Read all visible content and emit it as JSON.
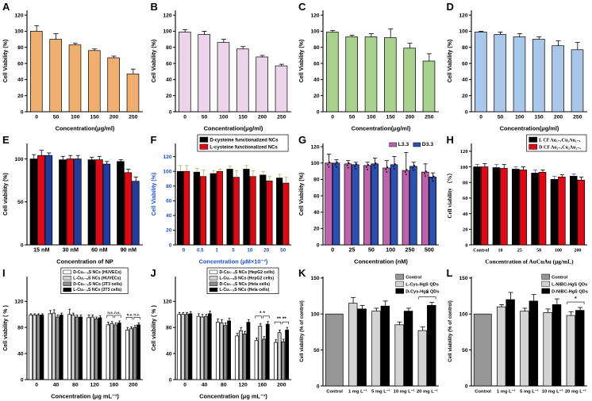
{
  "figure": {
    "background": "#ffffff"
  },
  "chart_data": [
    {
      "panel": "A",
      "type": "bar",
      "categories": [
        "0",
        "50",
        "100",
        "150",
        "200",
        "250"
      ],
      "series": [
        {
          "name": "",
          "color": "#F0AF6F",
          "values": [
            100,
            90,
            83,
            76,
            67,
            47
          ],
          "errors": [
            7,
            7,
            2,
            2,
            2,
            6
          ]
        }
      ],
      "xlabel": "Concentration(μg/ml)",
      "ylabel": "Cell Viability (%)",
      "ylim": [
        0,
        126
      ],
      "yticks": [
        0,
        20,
        40,
        60,
        80,
        100,
        120
      ],
      "grid": false,
      "legend": null
    },
    {
      "panel": "B",
      "type": "bar",
      "categories": [
        "0",
        "50",
        "100",
        "150",
        "200",
        "250"
      ],
      "series": [
        {
          "name": "",
          "color": "#ECD4E9",
          "values": [
            99,
            96,
            86,
            78,
            68,
            57
          ],
          "errors": [
            3,
            4,
            4,
            3,
            2,
            2
          ]
        }
      ],
      "xlabel": "Concentration(μg/ml)",
      "ylabel": "Cell Viability (%)",
      "ylim": [
        0,
        126
      ],
      "yticks": [
        0,
        20,
        40,
        60,
        80,
        100,
        120
      ],
      "grid": false,
      "legend": null
    },
    {
      "panel": "C",
      "type": "bar",
      "categories": [
        "0",
        "50",
        "100",
        "150",
        "200",
        "250"
      ],
      "series": [
        {
          "name": "",
          "color": "#A9D18E",
          "values": [
            99,
            93,
            93,
            92,
            79,
            63
          ],
          "errors": [
            2,
            2,
            4,
            11,
            6,
            9
          ]
        }
      ],
      "xlabel": "Concentration(μg/ml)",
      "ylabel": "Cell Viability (%)",
      "ylim": [
        0,
        126
      ],
      "yticks": [
        0,
        20,
        40,
        60,
        80,
        100,
        120
      ],
      "grid": false,
      "legend": null
    },
    {
      "panel": "D",
      "type": "bar",
      "categories": [
        "0",
        "50",
        "100",
        "150",
        "200",
        "250"
      ],
      "series": [
        {
          "name": "",
          "color": "#A9C7E8",
          "values": [
            99,
            96,
            93,
            90,
            82,
            77
          ],
          "errors": [
            1,
            3,
            4,
            3,
            6,
            9
          ]
        }
      ],
      "xlabel": "Concentration(μg/ml)",
      "ylabel": "Cell Viability (%)",
      "ylim": [
        0,
        126
      ],
      "yticks": [
        0,
        20,
        40,
        60,
        80,
        100,
        120
      ],
      "grid": false,
      "legend": null
    },
    {
      "panel": "E",
      "type": "bar",
      "categories": [
        "15 nM",
        "30 nM",
        "60 nM",
        "90 nM"
      ],
      "series": [
        {
          "name": "",
          "color": "#000000",
          "values": [
            100,
            99,
            99,
            97
          ],
          "errors": [
            5,
            4,
            3,
            2
          ]
        },
        {
          "name": "",
          "color": "#E30613",
          "values": [
            104,
            100,
            99,
            84
          ],
          "errors": [
            6,
            4,
            4,
            4
          ]
        },
        {
          "name": "",
          "color": "#1F3C9E",
          "values": [
            104,
            100,
            94,
            74
          ],
          "errors": [
            3,
            4,
            3,
            5
          ]
        }
      ],
      "xlabel": "Concentration of NP",
      "ylabel": "Cell viability (%)",
      "ylim": [
        0,
        118
      ],
      "yticks": [
        0,
        50,
        100
      ],
      "grid": false,
      "legend": null,
      "xtick_size": 7.2
    },
    {
      "panel": "F",
      "type": "bar",
      "categories": [
        "0",
        "0.5",
        "1",
        "5",
        "10",
        "20",
        "50"
      ],
      "series": [
        {
          "name": "D-cysteine functionalized NCs",
          "color": "#000000",
          "values": [
            100,
            99,
            97,
            103,
            103,
            95,
            91
          ],
          "errors": [
            8,
            5,
            4,
            4,
            5,
            5,
            5
          ],
          "err_color": "#A6B85C"
        },
        {
          "name": "L-cysteine functionalized  NCs",
          "color": "#E30613",
          "values": [
            100,
            93,
            100,
            92,
            93,
            87,
            84
          ],
          "errors": [
            8,
            9,
            3,
            9,
            8,
            6,
            8
          ],
          "err_color": "#A6B85C"
        }
      ],
      "xlabel": "Concentration (μM×10⁻³)",
      "ylabel": "Cell Viability (%)",
      "ylim": [
        0,
        138
      ],
      "yticks": [
        0,
        20,
        40,
        60,
        80,
        100,
        120
      ],
      "axis_color": "#1C4ED8",
      "grid": false,
      "legend": {
        "border": true,
        "pos": "center"
      },
      "xtick_size": 6.2
    },
    {
      "panel": "G",
      "type": "bar",
      "categories": [
        "0",
        "25",
        "50",
        "100",
        "250",
        "500"
      ],
      "series": [
        {
          "name": "L3.3",
          "color": "#BE62AC",
          "values": [
            100,
            99,
            97,
            94,
            91,
            89
          ],
          "errors": [
            11,
            4,
            4,
            9,
            22,
            10
          ],
          "dots": true
        },
        {
          "name": "D3.3",
          "color": "#2B50B4",
          "values": [
            100,
            98,
            99,
            98,
            96,
            83
          ],
          "errors": [
            4,
            3,
            7,
            10,
            5,
            5
          ],
          "dots": true
        }
      ],
      "xlabel": "Concentration (nM)",
      "ylabel": "Cell Viability (%)",
      "ylim": [
        0,
        124
      ],
      "yticks": [
        0,
        20,
        40,
        60,
        80,
        100,
        120
      ],
      "grid": false,
      "legend": {
        "border": false,
        "pos": "right",
        "row": true
      },
      "xtick_size": 7.2
    },
    {
      "panel": "H",
      "type": "bar",
      "font": "serif",
      "categories": [
        "Control",
        "10",
        "25",
        "50",
        "100",
        "200"
      ],
      "series": [
        {
          "name": "L CF Au₁₋ₓCu₂Au₁₋ₓ",
          "color": "#000000",
          "values": [
            100,
            99,
            97,
            92,
            84,
            88
          ],
          "errors": [
            3,
            4,
            3,
            4,
            4,
            3
          ],
          "err_color": "#3A5FC8"
        },
        {
          "name": "D CF Au₁₋ₓCu₂Au₁₋ₓ",
          "color": "#E30613",
          "values": [
            100,
            98,
            96,
            93,
            87,
            83
          ],
          "errors": [
            4,
            5,
            4,
            3,
            3,
            4
          ],
          "err_color": "#000000"
        }
      ],
      "xlabel": "Concentration of AuCuAu (μg/mL)",
      "ylabel": "Cell viability （%）",
      "ylim": [
        0,
        130
      ],
      "yticks": [
        0,
        20,
        40,
        60,
        80,
        100,
        120
      ],
      "grid": false,
      "legend": {
        "border": true,
        "pos": "right"
      },
      "xtick_size": 6.0
    },
    {
      "panel": "I",
      "type": "bar",
      "categories": [
        "0",
        "40",
        "80",
        "120",
        "160",
        "200"
      ],
      "series": [
        {
          "name": "D-Cu₂₋ₓS NCs (HUVECs)",
          "color": "#FFFFFF",
          "values": [
            99,
            101,
            100,
            95,
            84,
            76
          ],
          "errors": [
            2,
            5,
            8,
            4,
            4,
            4
          ]
        },
        {
          "name": "L-Cu₂₋ₓS NCs (HUVECs)",
          "color": "#D3D3D3",
          "values": [
            99,
            102,
            99,
            96,
            86,
            78
          ],
          "errors": [
            2,
            5,
            3,
            3,
            3,
            3
          ]
        },
        {
          "name": "D-Cu₂₋ₓS NCs (3T3 cells)",
          "color": "#8C8C8C",
          "values": [
            99,
            96,
            96,
            93,
            84,
            80
          ],
          "errors": [
            2,
            3,
            3,
            3,
            3,
            3
          ]
        },
        {
          "name": "L-Cu₂₋ₓS NCs (3T3 cells)",
          "color": "#000000",
          "values": [
            99,
            99,
            96,
            95,
            87,
            84
          ],
          "errors": [
            2,
            3,
            3,
            3,
            3,
            3
          ]
        }
      ],
      "xlabel": "Concentration (μg mL⁻¹)",
      "ylabel": "Cell viability ( % )",
      "ylim": [
        0,
        158
      ],
      "yticks": [
        0,
        40,
        80,
        120
      ],
      "grid": false,
      "legend": {
        "border": true,
        "pos": "center"
      },
      "annotations": [
        {
          "group": 4,
          "text": "n.s. n.s.",
          "brackets": 2,
          "size": 4.4
        },
        {
          "group": 5,
          "text": "n.s. n.s.",
          "brackets": 2,
          "size": 4.4
        }
      ]
    },
    {
      "panel": "J",
      "type": "bar",
      "categories": [
        "0",
        "40",
        "80",
        "120",
        "160",
        "200"
      ],
      "series": [
        {
          "name": "D-Cu₂₋ₓS NCs (HepG2 cells)",
          "color": "#FFFFFF",
          "values": [
            100,
            97,
            88,
            67,
            60,
            57
          ],
          "errors": [
            3,
            4,
            5,
            4,
            4,
            4
          ]
        },
        {
          "name": "L-Cu₂₋ₓS NCs (HepG2 cells)",
          "color": "#D3D3D3",
          "values": [
            100,
            96,
            87,
            75,
            82,
            72
          ],
          "errors": [
            3,
            4,
            5,
            5,
            4,
            4
          ]
        },
        {
          "name": "D-Cu₂₋ₓS NCs (Hela cells)",
          "color": "#8C8C8C",
          "values": [
            100,
            97,
            83,
            70,
            62,
            58
          ],
          "errors": [
            3,
            3,
            4,
            4,
            4,
            4
          ]
        },
        {
          "name": "L-Cu₂₋ₓS NCs (Hela cells)",
          "color": "#000000",
          "values": [
            101,
            101,
            90,
            88,
            85,
            76
          ],
          "errors": [
            3,
            4,
            4,
            4,
            4,
            4
          ]
        }
      ],
      "xlabel": "Concentration (μg mL⁻¹)",
      "ylabel": "Cell viability ( % )",
      "ylim": [
        0,
        158
      ],
      "yticks": [
        0,
        40,
        80,
        120
      ],
      "grid": false,
      "legend": {
        "border": true,
        "pos": "center"
      },
      "annotations": [
        {
          "group": 4,
          "text": "*    *",
          "brackets": 2,
          "size": 6.5
        },
        {
          "group": 5,
          "text": "**  **",
          "brackets": 2,
          "size": 6.5
        }
      ]
    },
    {
      "panel": "K",
      "type": "bar",
      "categories": [
        "Control",
        "1 mg L⁻¹",
        "5 mg L⁻¹",
        "10 mg L⁻¹",
        "20 mg L⁻¹"
      ],
      "series": [
        {
          "name": "Control",
          "color": "#969696",
          "values": [
            100,
            null,
            null,
            null,
            null
          ],
          "errors": [
            0,
            null,
            null,
            null,
            null
          ]
        },
        {
          "name": "L-Cys-HgS QDs",
          "color": "#D3D3D3",
          "values": [
            null,
            115,
            104,
            85,
            77
          ],
          "errors": [
            null,
            8,
            4,
            4,
            5
          ]
        },
        {
          "name": "D-Cys-HgS QDs",
          "color": "#000000",
          "values": [
            null,
            107,
            111,
            104,
            112
          ],
          "errors": [
            null,
            5,
            7,
            4,
            4
          ]
        }
      ],
      "xlabel": "",
      "ylabel": "Cell viability (% of control)",
      "ylim": [
        0,
        152
      ],
      "yticks": [
        0,
        50,
        100,
        150
      ],
      "grid": false,
      "legend": {
        "border": false,
        "pos": "right"
      },
      "xtick_size": 5.8,
      "ylabel_size": 6.2,
      "annotations": [
        {
          "group": 4,
          "text": "*",
          "brackets": 1,
          "size": 7
        }
      ]
    },
    {
      "panel": "L",
      "type": "bar",
      "categories": [
        "Control",
        "1 mg L⁻¹",
        "5 mg L⁻¹",
        "10 mg L⁻¹",
        "20 mg L⁻¹"
      ],
      "series": [
        {
          "name": "Control",
          "color": "#969696",
          "values": [
            100,
            null,
            null,
            null,
            null
          ],
          "errors": [
            0,
            null,
            null,
            null,
            null
          ]
        },
        {
          "name": "L-NIBC-HgS QDs",
          "color": "#D3D3D3",
          "values": [
            null,
            110,
            104,
            102,
            98
          ],
          "errors": [
            null,
            3,
            4,
            5,
            5
          ]
        },
        {
          "name": "D-NIBC-HgS QDs",
          "color": "#000000",
          "values": [
            null,
            120,
            118,
            113,
            105
          ],
          "errors": [
            null,
            10,
            9,
            8,
            4
          ]
        }
      ],
      "xlabel": "",
      "ylabel": "Cell viability (% of control)",
      "ylim": [
        0,
        152
      ],
      "yticks": [
        0,
        50,
        100,
        150
      ],
      "grid": false,
      "legend": {
        "border": false,
        "pos": "right"
      },
      "xtick_size": 5.8,
      "ylabel_size": 6.2,
      "annotations": [
        {
          "group": 4,
          "text": "*",
          "brackets": 1,
          "size": 7
        }
      ]
    }
  ]
}
